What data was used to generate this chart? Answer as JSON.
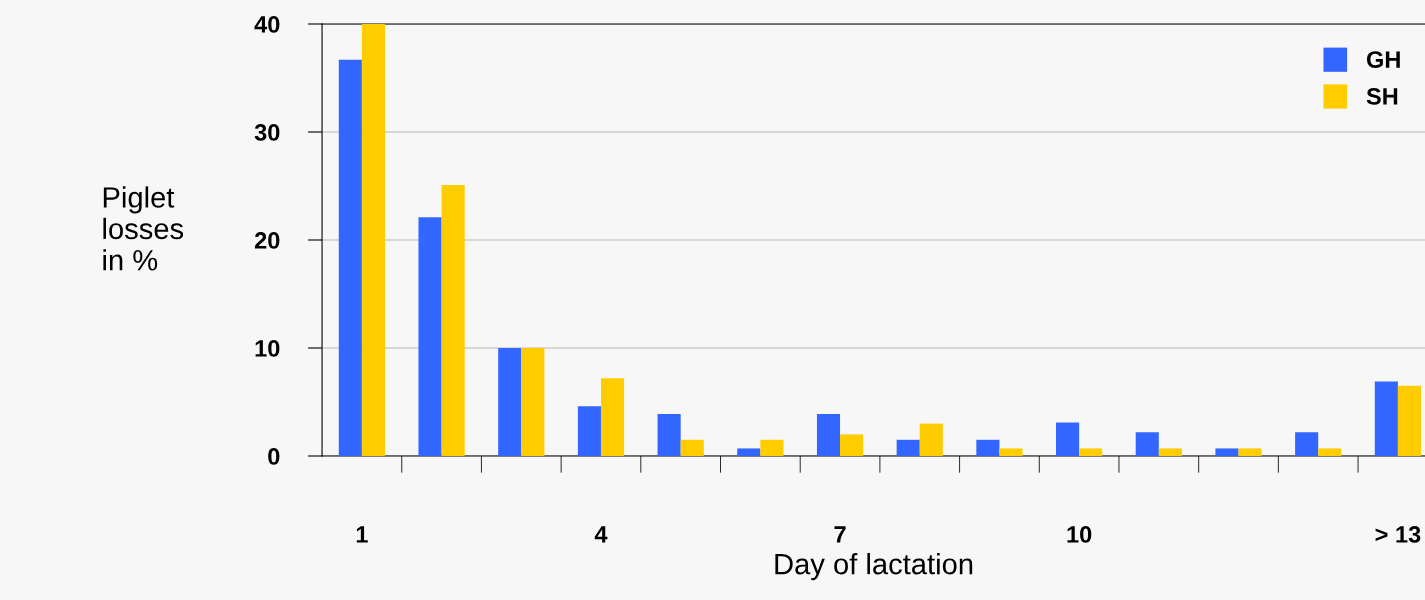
{
  "chart_data": {
    "type": "bar",
    "xlabel": "Day of lactation",
    "ylabel": "Piglet\nlosses\nin %",
    "categories": [
      "1",
      null,
      null,
      "4",
      null,
      null,
      "7",
      null,
      null,
      "10",
      null,
      null,
      null,
      "> 13"
    ],
    "series": [
      {
        "name": "GH",
        "color": "#3366ff",
        "values": [
          36.7,
          22.1,
          10,
          4.6,
          3.9,
          0.7,
          3.9,
          1.5,
          1.5,
          3.1,
          2.2,
          0.7,
          2.2,
          6.9
        ]
      },
      {
        "name": "SH",
        "color": "#ffcc00",
        "values": [
          40,
          25.1,
          10,
          7.2,
          1.5,
          1.5,
          2.0,
          3.0,
          0.7,
          0.7,
          0.7,
          0.7,
          0.7,
          6.5
        ]
      }
    ],
    "ylim": [
      0,
      40
    ],
    "yticks": [
      0,
      10,
      20,
      30,
      40
    ],
    "grid": "y",
    "legend": "top right"
  }
}
